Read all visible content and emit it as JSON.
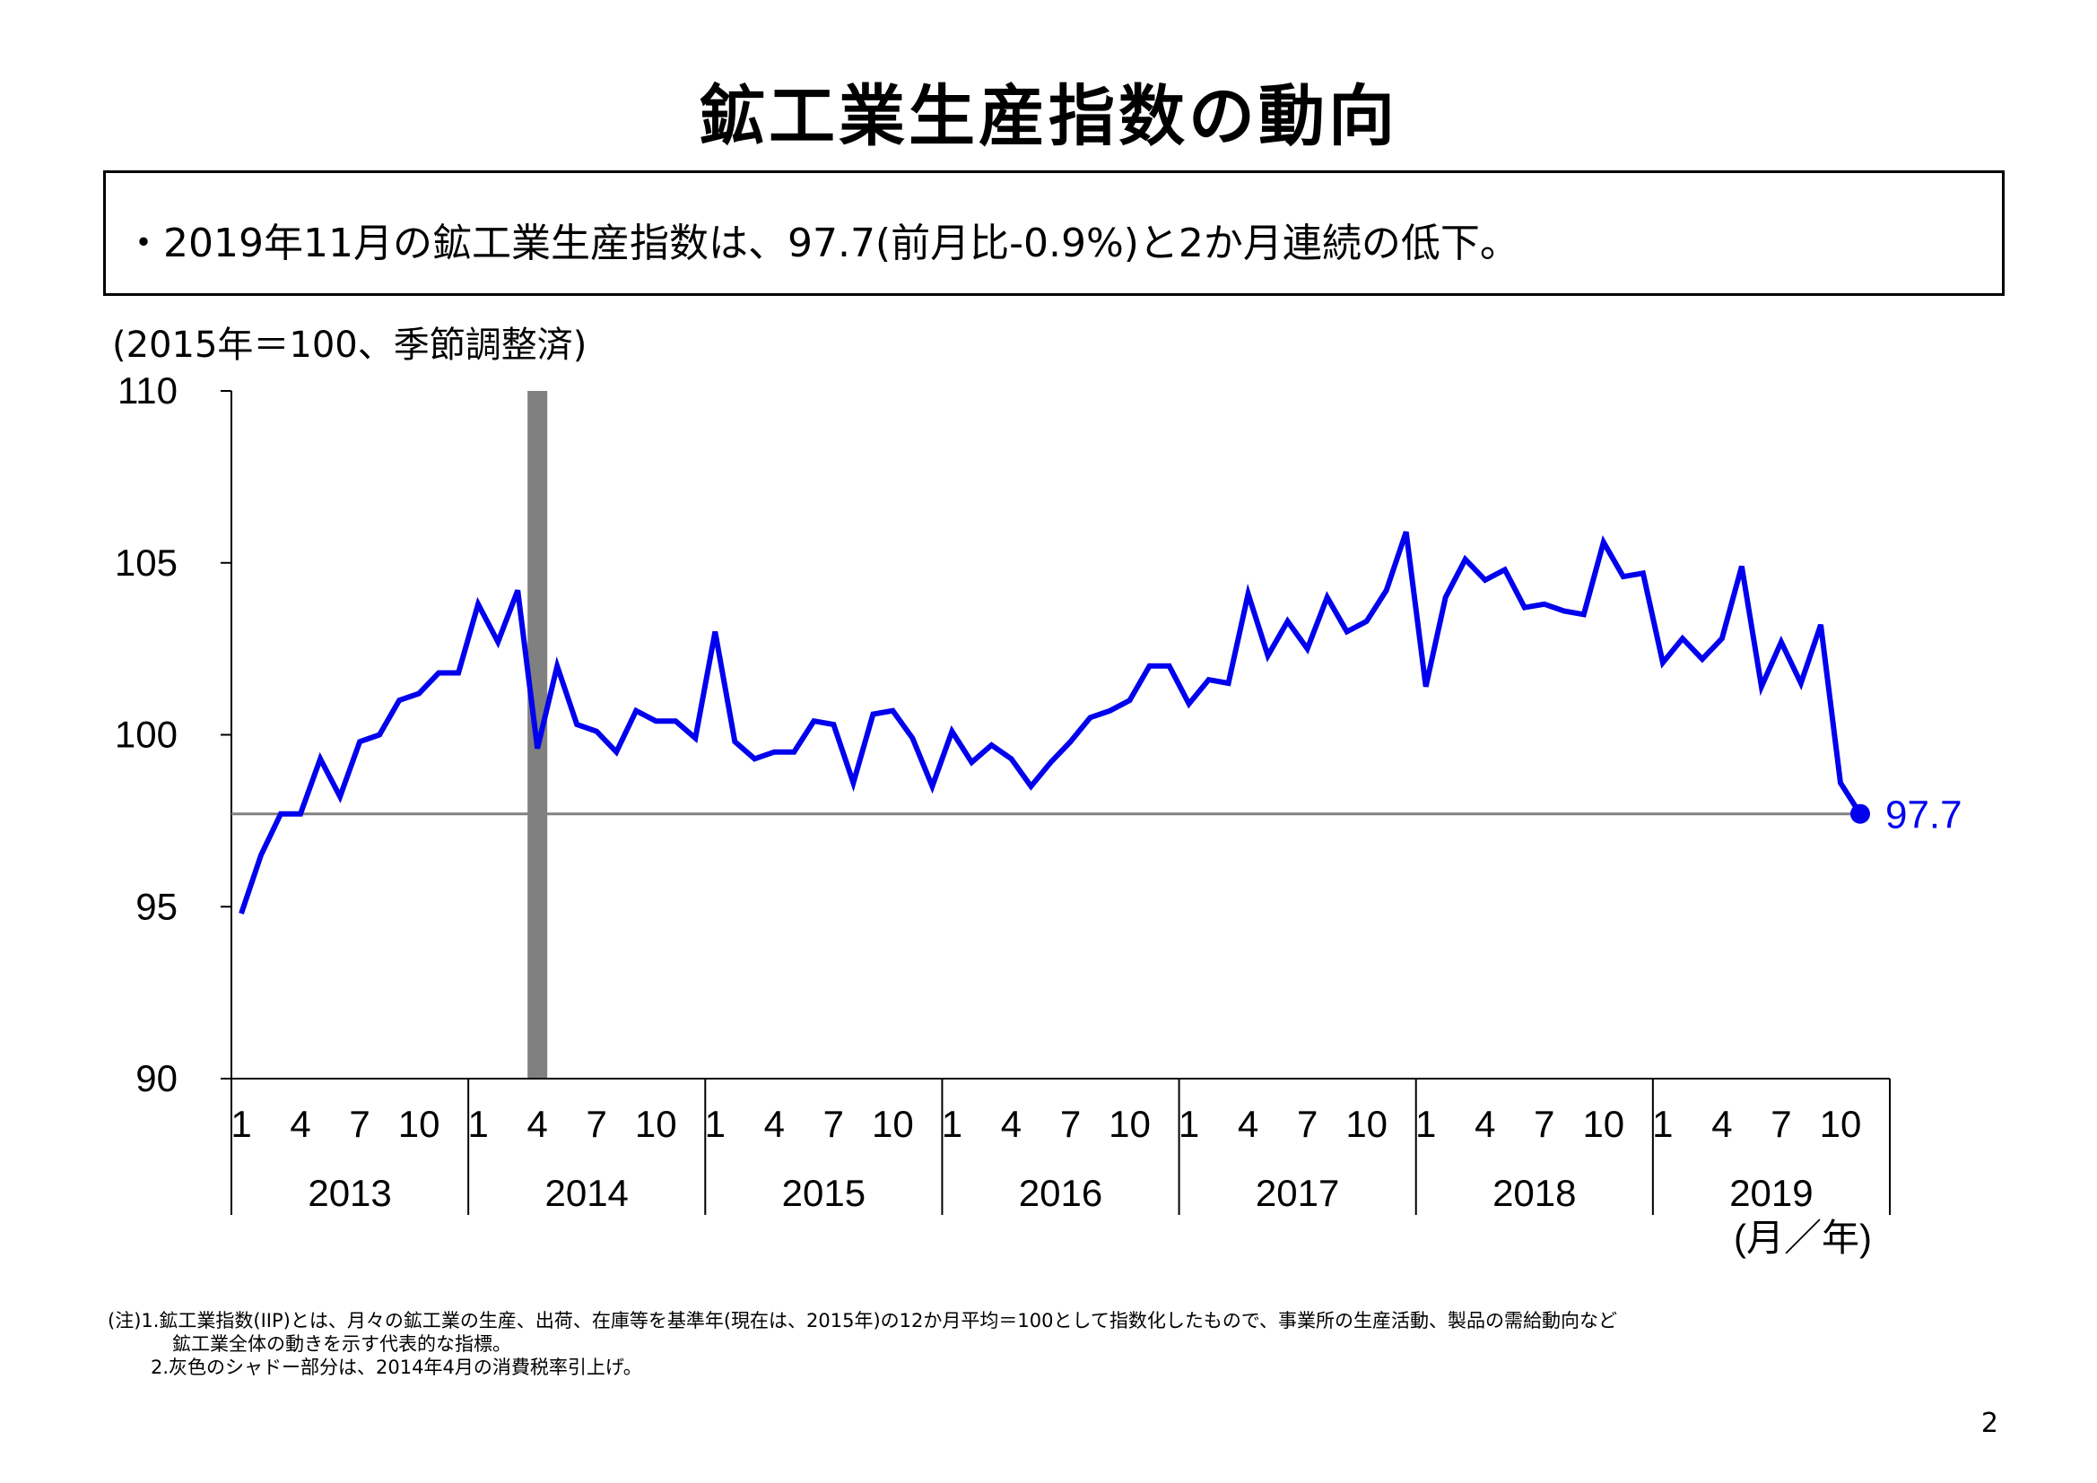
{
  "title": "鉱工業生産指数の動向",
  "summary": "・2019年11月の鉱工業生産指数は、97.7(前月比-0.9%)と2か月連続の低下。",
  "unit_label": "(2015年＝100、季節調整済)",
  "notes": {
    "line1": "(注)1.鉱工業指数(IIP)とは、月々の鉱工業の生産、出荷、在庫等を基準年(現在は、2015年)の12か月平均＝100として指数化したもので、事業所の生産活動、製品の需給動向など",
    "line2": "鉱工業全体の動きを示す代表的な指標。",
    "line3": "2.灰色のシャドー部分は、2014年4月の消費税率引上げ。"
  },
  "page_number": "2",
  "chart_data": {
    "type": "line",
    "title": "",
    "xlabel": "(月／年)",
    "ylabel": "",
    "ylim": [
      90,
      110
    ],
    "y_ticks": [
      90,
      95,
      100,
      105,
      110
    ],
    "x_month_ticks": [
      "1",
      "4",
      "7",
      "10"
    ],
    "years": [
      "2013",
      "2014",
      "2015",
      "2016",
      "2017",
      "2018",
      "2019"
    ],
    "x_start": "2013-01",
    "series": [
      {
        "name": "",
        "color": "#0000ee",
        "values": [
          94.8,
          96.5,
          97.7,
          97.7,
          99.3,
          98.2,
          99.8,
          100.0,
          101.0,
          101.2,
          101.8,
          101.8,
          103.8,
          102.7,
          104.2,
          99.6,
          102.0,
          100.3,
          100.1,
          99.5,
          100.7,
          100.4,
          100.4,
          99.9,
          103.0,
          99.8,
          99.3,
          99.5,
          99.5,
          100.4,
          100.3,
          98.6,
          100.6,
          100.7,
          99.9,
          98.5,
          100.1,
          99.2,
          99.7,
          99.3,
          98.5,
          99.2,
          99.8,
          100.5,
          100.7,
          101.0,
          102.0,
          102.0,
          100.9,
          101.6,
          101.5,
          104.1,
          102.3,
          103.3,
          102.5,
          104.0,
          103.0,
          103.3,
          104.2,
          105.9,
          101.4,
          104.0,
          105.1,
          104.5,
          104.8,
          103.7,
          103.8,
          103.6,
          103.5,
          105.6,
          104.6,
          104.7,
          102.1,
          102.8,
          102.2,
          102.8,
          104.9,
          101.4,
          102.7,
          101.5,
          103.2,
          98.6,
          97.7
        ]
      }
    ],
    "reference_line": {
      "value": 97.7,
      "color": "#808080"
    },
    "last_point_label": "97.7",
    "shade": {
      "from": "2014-04",
      "color": "#808080"
    }
  }
}
